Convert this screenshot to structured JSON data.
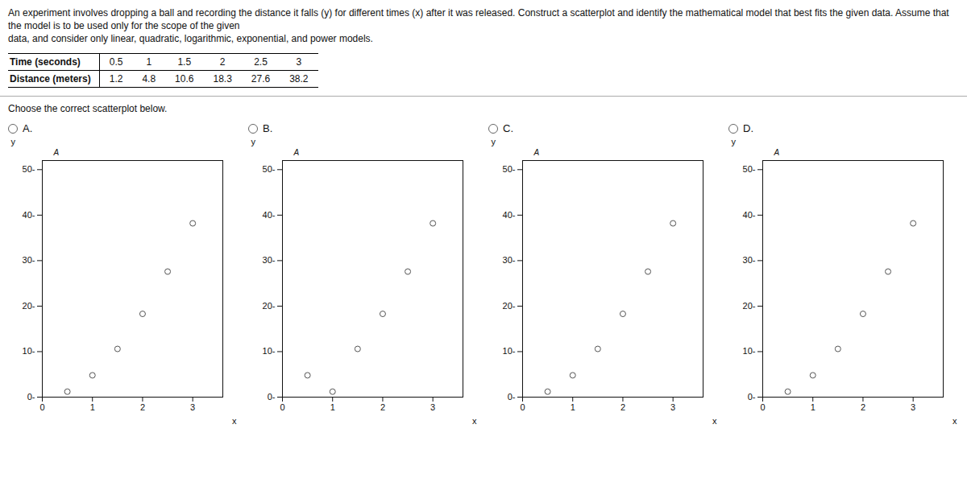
{
  "chart_data": [
    {
      "type": "table",
      "title": "An experiment involves dropping a ball and recording the distance it falls (y) for different times (x) after it was released. Construct a scatterplot and identify the mathematical model that best fits the given data. Assume that the model is to be used only for the scope of the given",
      "subtitle": "data, and consider only linear, quadratic, logarithmic, exponential, and power models.",
      "rows": [
        {
          "name": "Time (seconds)",
          "values": [
            0.5,
            1,
            1.5,
            2,
            2.5,
            3
          ]
        },
        {
          "name": "Distance (meters)",
          "values": [
            1.2,
            4.8,
            10.6,
            18.3,
            27.6,
            38.2
          ]
        }
      ],
      "annotations": [
        "Choose the correct scatterplot below."
      ]
    },
    {
      "type": "scatter",
      "title": "A.",
      "xlabel": "x",
      "ylabel": "y",
      "annotations": [
        "A"
      ],
      "x": [
        0.5,
        1.0,
        1.5,
        2.0,
        2.5,
        3.0
      ],
      "values": [
        1.2,
        4.8,
        10.6,
        18.3,
        27.6,
        38.2
      ],
      "color": "#555555",
      "marker": "circle",
      "grid": false,
      "xlim": [
        0,
        3.6
      ],
      "xticks": [
        0,
        1,
        2,
        3
      ],
      "ylim": [
        0,
        52
      ],
      "yticks": [
        {
          "value": 0,
          "label": "0-"
        },
        {
          "value": 10,
          "label": "10-"
        },
        {
          "value": 20,
          "label": "20-"
        },
        {
          "value": 30,
          "label": "30-"
        },
        {
          "value": 40,
          "label": "40-"
        },
        {
          "value": 50,
          "label": "50-"
        }
      ]
    },
    {
      "type": "scatter",
      "title": "B.",
      "xlabel": "x",
      "ylabel": "y",
      "annotations": [
        "A"
      ],
      "x": [
        0.5,
        1.0,
        1.5,
        2.0,
        2.5,
        3.0
      ],
      "values": [
        4.8,
        1.2,
        10.6,
        18.3,
        27.6,
        38.2
      ],
      "color": "#555555",
      "marker": "circle",
      "grid": false,
      "xlim": [
        0,
        3.6
      ],
      "xticks": [
        0,
        1,
        2,
        3
      ],
      "ylim": [
        0,
        52
      ],
      "yticks": [
        {
          "value": 0,
          "label": "0-"
        },
        {
          "value": 10,
          "label": "10-"
        },
        {
          "value": 20,
          "label": "20-"
        },
        {
          "value": 30,
          "label": "30-"
        },
        {
          "value": 40,
          "label": "40-"
        },
        {
          "value": 50,
          "label": "50-"
        }
      ]
    },
    {
      "type": "scatter",
      "title": "C.",
      "xlabel": "x",
      "ylabel": "y",
      "annotations": [
        "A"
      ],
      "x": [
        0.5,
        1.0,
        1.5,
        2.0,
        2.5,
        3.0
      ],
      "values": [
        1.2,
        4.8,
        10.6,
        18.3,
        27.6,
        38.2
      ],
      "color": "#555555",
      "marker": "circle",
      "grid": false,
      "xlim": [
        0,
        3.6
      ],
      "xticks": [
        0,
        1,
        2,
        3
      ],
      "ylim": [
        0,
        52
      ],
      "yticks": [
        {
          "value": 0,
          "label": "0-"
        },
        {
          "value": 10,
          "label": "10-"
        },
        {
          "value": 20,
          "label": "20-"
        },
        {
          "value": 30,
          "label": "30-"
        },
        {
          "value": 40,
          "label": "40-"
        },
        {
          "value": 50,
          "label": "50-"
        }
      ]
    },
    {
      "type": "scatter",
      "title": "D.",
      "xlabel": "x",
      "ylabel": "y",
      "annotations": [
        "A"
      ],
      "x": [
        0.5,
        1.0,
        1.5,
        2.0,
        2.5,
        3.0
      ],
      "values": [
        1.2,
        4.8,
        10.6,
        18.3,
        27.6,
        38.2
      ],
      "color": "#555555",
      "marker": "circle",
      "grid": false,
      "xlim": [
        0,
        3.6
      ],
      "xticks": [
        0,
        1,
        2,
        3
      ],
      "ylim": [
        0,
        52
      ],
      "yticks": [
        {
          "value": 0,
          "label": "0-"
        },
        {
          "value": 10,
          "label": "10-"
        },
        {
          "value": 20,
          "label": "20-"
        },
        {
          "value": 30,
          "label": "30-"
        },
        {
          "value": 40,
          "label": "40-"
        },
        {
          "value": 50,
          "label": "50-"
        }
      ]
    }
  ]
}
